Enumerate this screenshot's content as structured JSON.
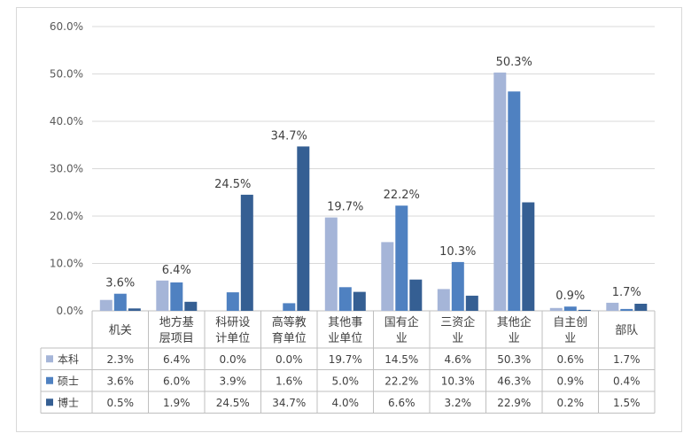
{
  "chart_data": {
    "type": "bar",
    "categories": [
      [
        "机关"
      ],
      [
        "地方基",
        "层项目"
      ],
      [
        "科研设",
        "计单位"
      ],
      [
        "高等教",
        "育单位"
      ],
      [
        "其他事",
        "业单位"
      ],
      [
        "国有企",
        "业"
      ],
      [
        "三资企",
        "业"
      ],
      [
        "其他企",
        "业"
      ],
      [
        "自主创",
        "业"
      ],
      [
        "部队"
      ]
    ],
    "series": [
      {
        "name": "本科",
        "color": "#a5b5d8",
        "values": [
          2.3,
          6.4,
          0.0,
          0.0,
          19.7,
          14.5,
          4.6,
          50.3,
          0.6,
          1.7
        ],
        "labels": [
          "2.3%",
          "6.4%",
          "0.0%",
          "0.0%",
          "19.7%",
          "14.5%",
          "4.6%",
          "50.3%",
          "0.6%",
          "1.7%"
        ]
      },
      {
        "name": "硕士",
        "color": "#4f81c1",
        "values": [
          3.6,
          6.0,
          3.9,
          1.6,
          5.0,
          22.2,
          10.3,
          46.3,
          0.9,
          0.4
        ],
        "labels": [
          "3.6%",
          "6.0%",
          "3.9%",
          "1.6%",
          "5.0%",
          "22.2%",
          "10.3%",
          "46.3%",
          "0.9%",
          "0.4%"
        ]
      },
      {
        "name": "博士",
        "color": "#355f93",
        "values": [
          0.5,
          1.9,
          24.5,
          34.7,
          4.0,
          6.6,
          3.2,
          22.9,
          0.2,
          1.5
        ],
        "labels": [
          "0.5%",
          "1.9%",
          "24.5%",
          "34.7%",
          "4.0%",
          "6.6%",
          "3.2%",
          "22.9%",
          "0.2%",
          "1.5%"
        ]
      }
    ],
    "data_labels": [
      "3.6%",
      "6.4%",
      "24.5%",
      "34.7%",
      "19.7%",
      "22.2%",
      "10.3%",
      "50.3%",
      "0.9%",
      "1.7%"
    ],
    "yticks": [
      "0.0%",
      "10.0%",
      "20.0%",
      "30.0%",
      "40.0%",
      "50.0%",
      "60.0%"
    ],
    "ylim": [
      0,
      60
    ],
    "grid": true,
    "legend": "data-table"
  }
}
